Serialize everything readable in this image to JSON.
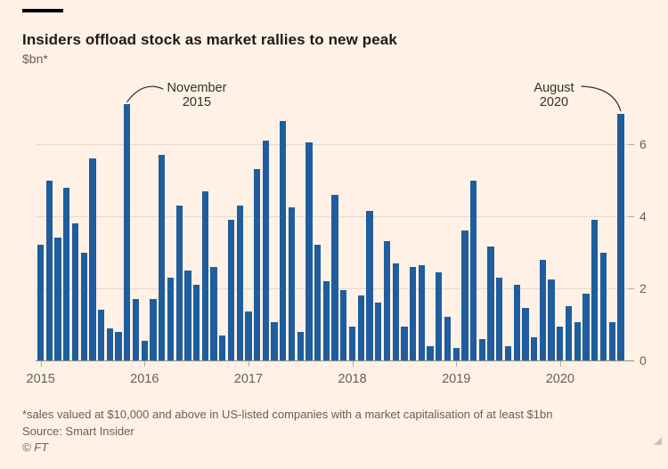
{
  "header": {
    "title": "Insiders offload stock as market rallies to new peak",
    "subtitle": "$bn*"
  },
  "chart_data": {
    "type": "bar",
    "unit": "$bn",
    "title": "Insiders offload stock as market rallies to new peak",
    "ylabel": "$bn*",
    "ylim": [
      0,
      7.5
    ],
    "y_ticks": [
      0,
      2,
      4,
      6
    ],
    "x_tick_labels": [
      "2015",
      "2016",
      "2017",
      "2018",
      "2019",
      "2020"
    ],
    "grid": "horizontal",
    "bar_color": "#1F5D9E",
    "background_color": "#FFF1E5",
    "series_by_year": [
      {
        "year": "2015",
        "values": [
          3.2,
          5.0,
          3.4,
          4.8,
          3.8,
          3.0,
          5.6,
          1.4,
          0.9,
          0.8,
          7.1,
          1.7
        ]
      },
      {
        "year": "2016",
        "values": [
          0.55,
          1.7,
          5.7,
          2.3,
          4.3,
          2.5,
          2.1,
          4.7,
          2.6,
          0.7,
          3.9,
          4.3
        ]
      },
      {
        "year": "2017",
        "values": [
          1.35,
          5.3,
          6.1,
          1.05,
          6.65,
          4.25,
          0.8,
          6.05,
          3.2,
          2.2,
          4.6,
          1.95
        ]
      },
      {
        "year": "2018",
        "values": [
          0.95,
          1.8,
          4.15,
          1.6,
          3.3,
          2.7,
          0.95,
          2.6,
          2.65,
          0.4,
          2.45,
          1.2
        ]
      },
      {
        "year": "2019",
        "values": [
          0.35,
          3.6,
          5.0,
          0.6,
          3.15,
          2.3,
          0.4,
          2.1,
          1.45,
          0.65,
          2.8,
          2.25
        ]
      },
      {
        "year": "2020",
        "values": [
          0.95,
          1.5,
          1.05,
          1.85,
          3.9,
          3.0,
          1.05,
          6.85
        ]
      }
    ],
    "annotations": [
      {
        "line1": "November",
        "line2": "2015",
        "bar_index": 10,
        "value": 7.1
      },
      {
        "line1": "August",
        "line2": "2020",
        "bar_index": 67,
        "value": 6.85
      }
    ]
  },
  "footer": {
    "note": "*sales valued at $10,000 and above in US-listed companies with a market capitalisation of at least $1bn",
    "source": "Source: Smart Insider",
    "copyright": "© FT"
  }
}
